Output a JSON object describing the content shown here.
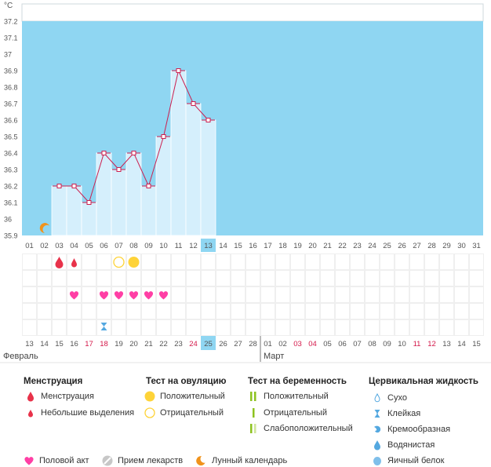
{
  "unit": "°C",
  "y_ticks": [
    "37.2",
    "37.1",
    "37",
    "36.9",
    "36.8",
    "36.7",
    "36.6",
    "36.5",
    "36.4",
    "36.3",
    "36.2",
    "36.1",
    "36",
    "35.9"
  ],
  "chart_data": {
    "type": "bar",
    "ylabel": "°C",
    "ylim": [
      35.9,
      37.2
    ],
    "cycle_days": [
      "01",
      "02",
      "03",
      "04",
      "05",
      "06",
      "07",
      "08",
      "09",
      "10",
      "11",
      "12",
      "13",
      "14",
      "15",
      "16",
      "17",
      "18",
      "19",
      "20",
      "21",
      "22",
      "23",
      "24",
      "25",
      "26",
      "27",
      "28",
      "29",
      "30",
      "31"
    ],
    "series": [
      {
        "values": [
          null,
          null,
          36.2,
          36.2,
          36.1,
          36.4,
          36.3,
          36.4,
          36.2,
          36.5,
          36.9,
          36.7,
          36.6,
          null,
          null,
          null,
          null,
          null,
          null,
          null,
          null,
          null,
          null,
          null,
          null,
          null,
          null,
          null,
          null,
          null,
          null
        ]
      }
    ],
    "current_day_index": 12
  },
  "calendar": {
    "dates": [
      "13",
      "14",
      "15",
      "16",
      "17",
      "18",
      "19",
      "20",
      "21",
      "22",
      "23",
      "24",
      "25",
      "26",
      "27",
      "28",
      "01",
      "02",
      "03",
      "04",
      "05",
      "06",
      "07",
      "08",
      "09",
      "10",
      "11",
      "12",
      "13",
      "14",
      "15"
    ],
    "red_dates_idx": [
      4,
      5,
      11,
      18,
      19,
      26,
      27
    ],
    "today_idx": 12,
    "month_feb": "Февраль",
    "month_mar": "Март"
  },
  "markers": {
    "moon_idx": 1,
    "menstruation_idx": 2,
    "light_spotting_idx": 3,
    "ovulation_negative_idx": 6,
    "ovulation_positive_idx": 7,
    "intercourse_idx": [
      3,
      5,
      6,
      7,
      8,
      9
    ],
    "sticky_mucus_idx": 5
  },
  "legend": {
    "menstruation": {
      "title": "Менструация",
      "items": [
        "Менструация",
        "Небольшие выделения"
      ]
    },
    "ovulation": {
      "title": "Тест на овуляцию",
      "items": [
        "Положительный",
        "Отрицательный"
      ]
    },
    "pregnancy": {
      "title": "Тест на беременность",
      "items": [
        "Положительный",
        "Отрицательный",
        "Слабоположительный"
      ]
    },
    "mucus": {
      "title": "Цервикальная жидкость",
      "items": [
        "Сухо",
        "Клейкая",
        "Кремообразная",
        "Водянистая",
        "Яичный белок"
      ]
    },
    "bottom": [
      "Половой акт",
      "Прием лекарств",
      "Лунный календарь"
    ]
  },
  "colors": {
    "sky": "#8fd6f2",
    "bar": "#d5effc",
    "line": "#cc1f4f",
    "today": "#8fd6f2",
    "red_date": "#d4184a",
    "heart": "#ff3fa5",
    "drop": "#e8324a",
    "ovulation": "#fed338",
    "moon": "#f0931c",
    "pregnancy": "#8dc21f",
    "mucus": "#54a8e0"
  }
}
